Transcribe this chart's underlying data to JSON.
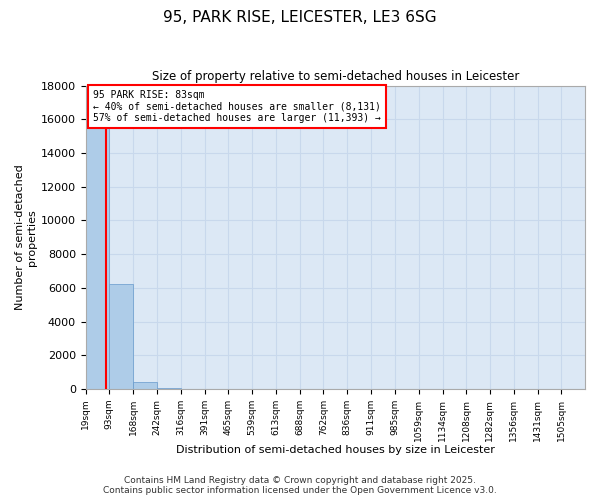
{
  "title": "95, PARK RISE, LEICESTER, LE3 6SG",
  "subtitle": "Size of property relative to semi-detached houses in Leicester",
  "xlabel": "Distribution of semi-detached houses by size in Leicester",
  "ylabel": "Number of semi-detached\nproperties",
  "bar_edges": [
    19,
    93,
    168,
    242,
    316,
    391,
    465,
    539,
    613,
    688,
    762,
    836,
    911,
    985,
    1059,
    1134,
    1208,
    1282,
    1356,
    1431,
    1505
  ],
  "bar_heights": [
    17000,
    6200,
    400,
    80,
    0,
    0,
    0,
    0,
    0,
    0,
    0,
    0,
    0,
    0,
    0,
    0,
    0,
    0,
    0,
    0
  ],
  "bar_color": "#aecce8",
  "grid_color": "#c8d8ec",
  "background_color": "#dce8f5",
  "ylim": [
    0,
    18000
  ],
  "yticks": [
    0,
    2000,
    4000,
    6000,
    8000,
    10000,
    12000,
    14000,
    16000,
    18000
  ],
  "red_line_x": 83,
  "annotation_title": "95 PARK RISE: 83sqm",
  "annotation_line1": "← 40% of semi-detached houses are smaller (8,131)",
  "annotation_line2": "57% of semi-detached houses are larger (11,393) →",
  "footer1": "Contains HM Land Registry data © Crown copyright and database right 2025.",
  "footer2": "Contains public sector information licensed under the Open Government Licence v3.0."
}
